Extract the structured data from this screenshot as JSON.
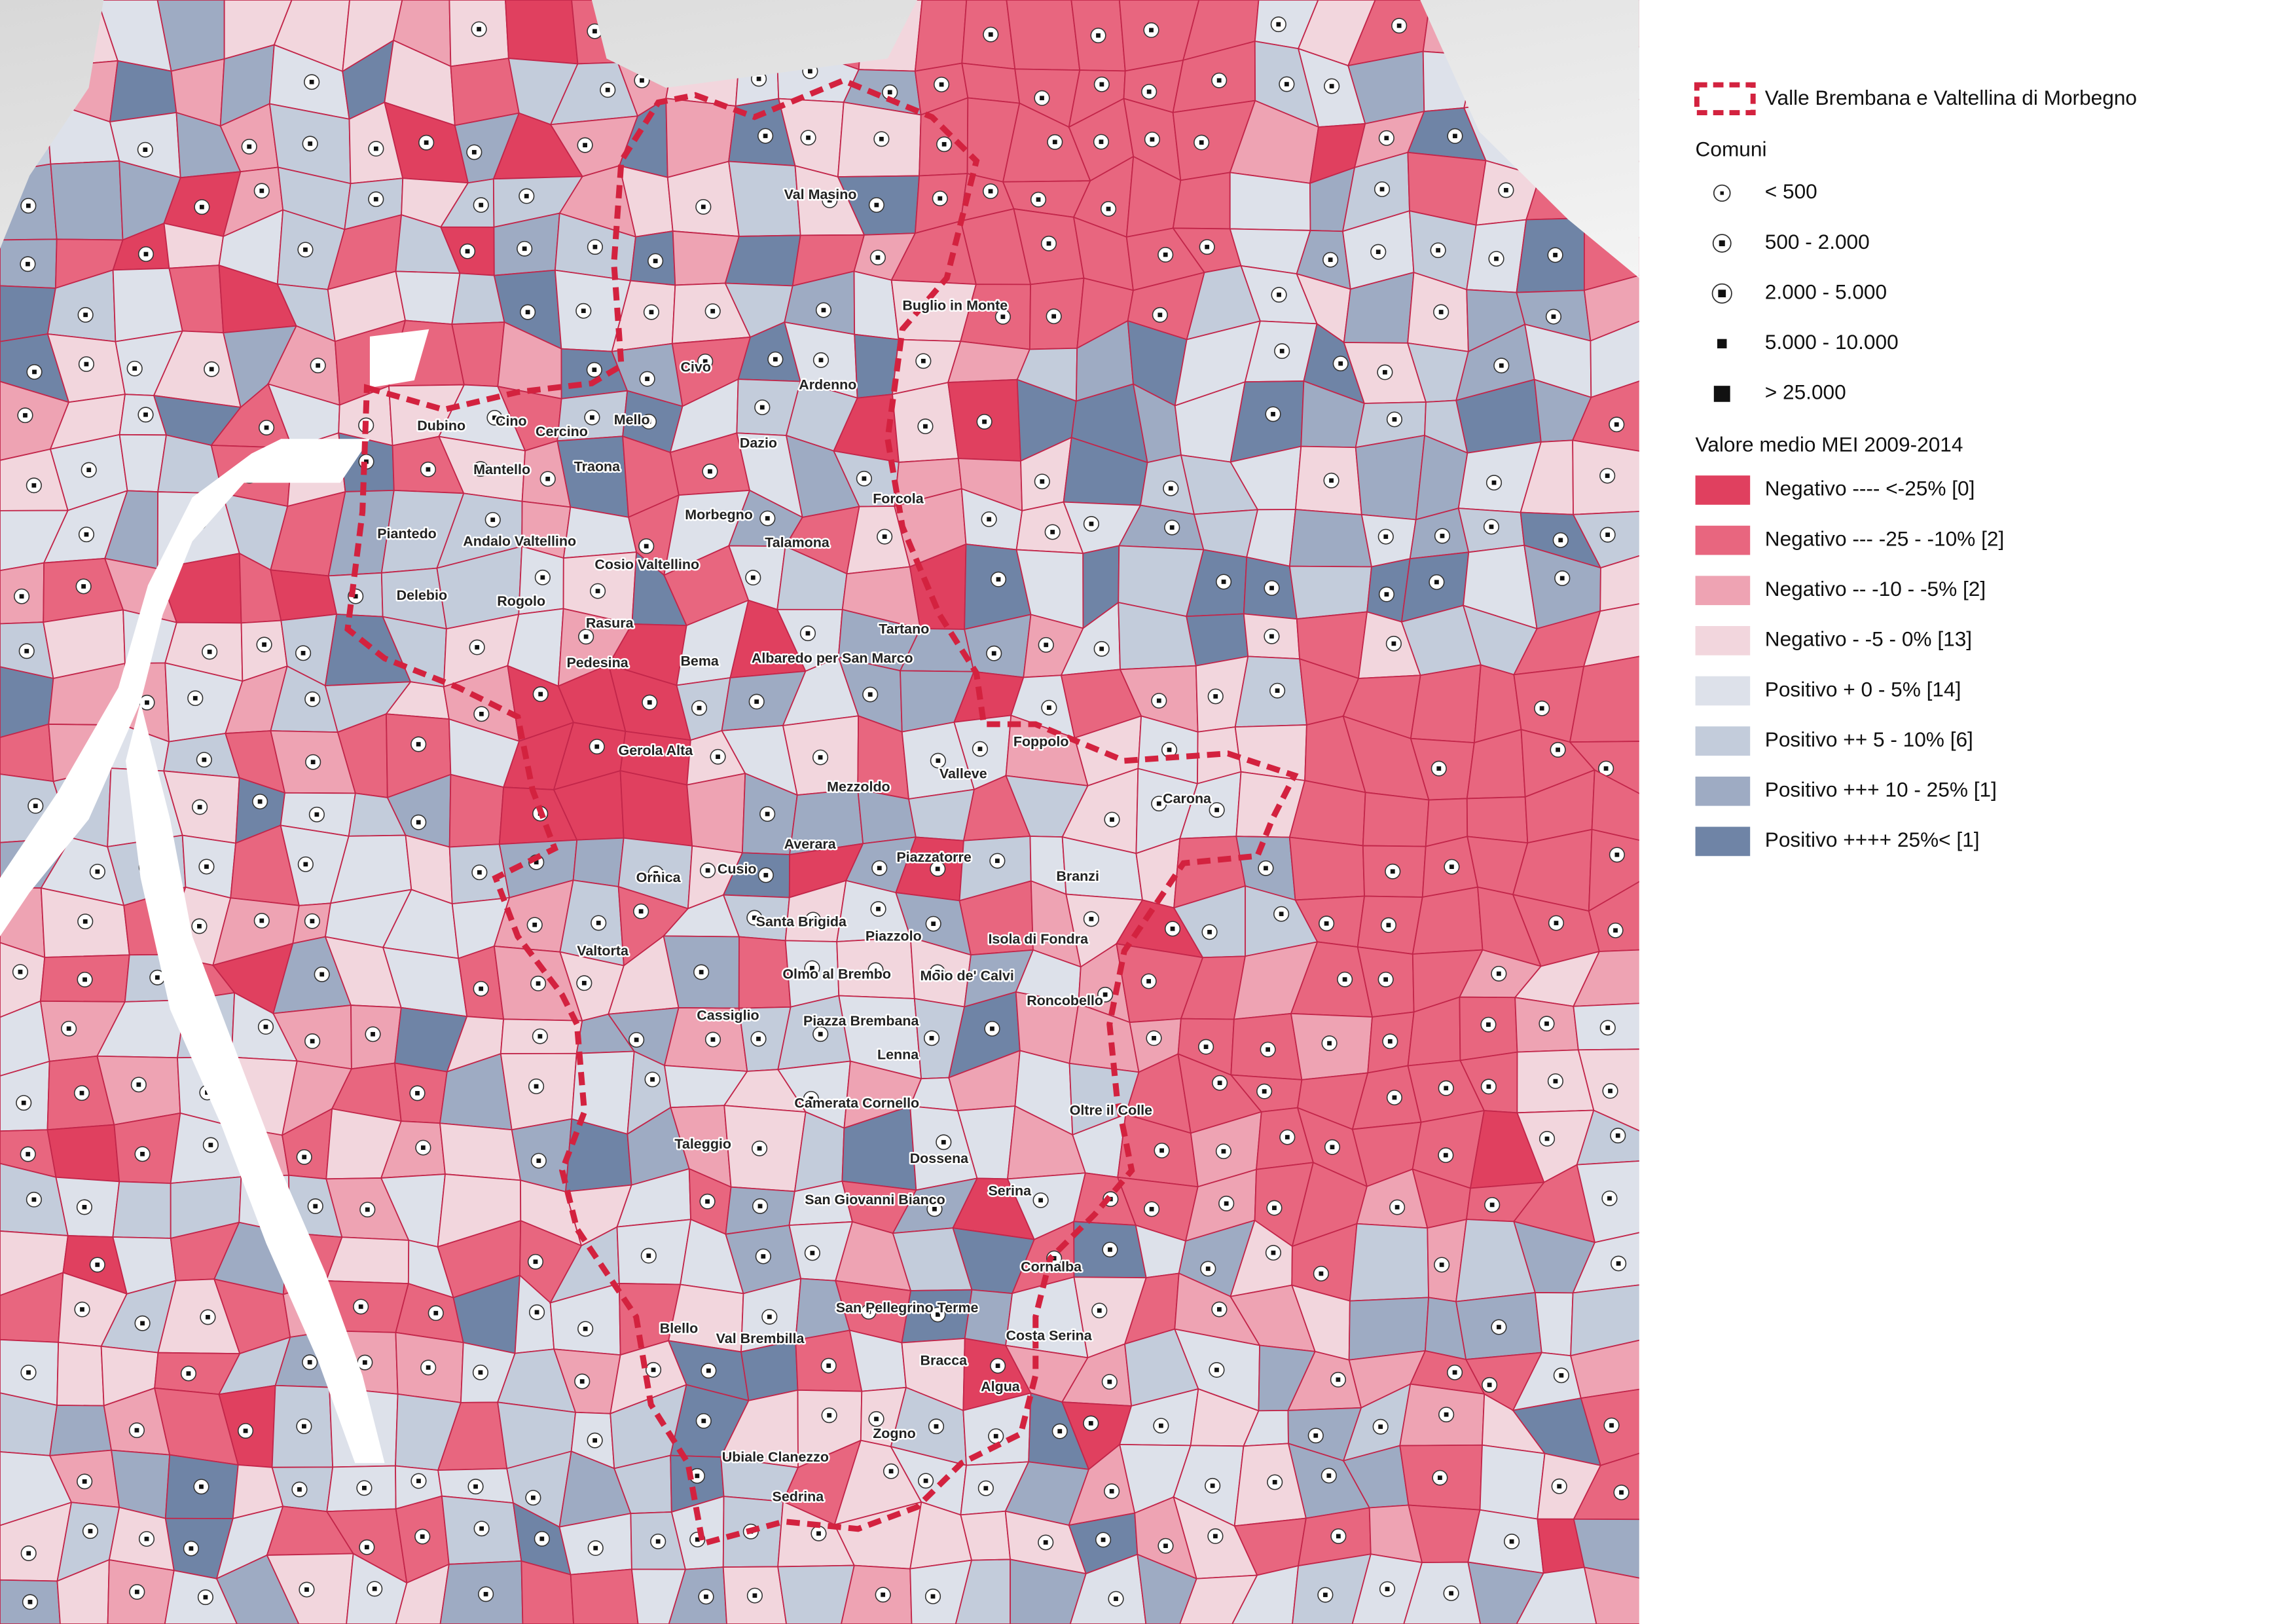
{
  "legend": {
    "boundary": "Valle Brembana e Valtellina di Morbegno",
    "comuni_title": "Comuni",
    "comuni": [
      "< 500",
      "500 - 2.000",
      "2.000 - 5.000",
      "5.000 - 10.000",
      "> 25.000"
    ],
    "mei_title": "Valore medio MEI 2009-2014",
    "mei": [
      "Negativo ---- <-25% [0]",
      "Negativo --- -25 - -10% [2]",
      "Negativo -- -10 - -5% [2]",
      "Negativo -  -5 - 0% [13]",
      "Positivo + 0 - 5% [14]",
      "Positivo ++ 5 - 10% [6]",
      "Positivo +++ 10 - 25% [1]",
      "Positivo ++++ 25%< [1]"
    ]
  },
  "places": [
    "Val Masino",
    "Buglio in Monte",
    "Civo",
    "Ardenno",
    "Mello",
    "Cino",
    "Cercino",
    "Dubino",
    "Dazio",
    "Mantello",
    "Traona",
    "Forcola",
    "Morbegno",
    "Piantedo",
    "Andalo Valtellino",
    "Talamona",
    "Cosio Valtellino",
    "Delebio",
    "Rogolo",
    "Rasura",
    "Tartano",
    "Pedesina",
    "Bema",
    "Albaredo per San Marco",
    "Foppolo",
    "Gerola Alta",
    "Valleve",
    "Mezzoldo",
    "Carona",
    "Averara",
    "Piazzatorre",
    "Cusio",
    "Ornica",
    "Branzi",
    "Santa Brigida",
    "Piazzolo",
    "Isola di Fondra",
    "Valtorta",
    "Olmo al Brembo",
    "Moio de' Calvi",
    "Roncobello",
    "Cassiglio",
    "Piazza Brembana",
    "Lenna",
    "Camerata Cornello",
    "Oltre il Colle",
    "Taleggio",
    "Dossena",
    "Serina",
    "San Giovanni Bianco",
    "Cornalba",
    "San Pellegrino Terme",
    "Blello",
    "Val Brembilla",
    "Costa Serina",
    "Bracca",
    "Algua",
    "Zogno",
    "Ubiale Clanezzo",
    "Sedrina"
  ]
}
